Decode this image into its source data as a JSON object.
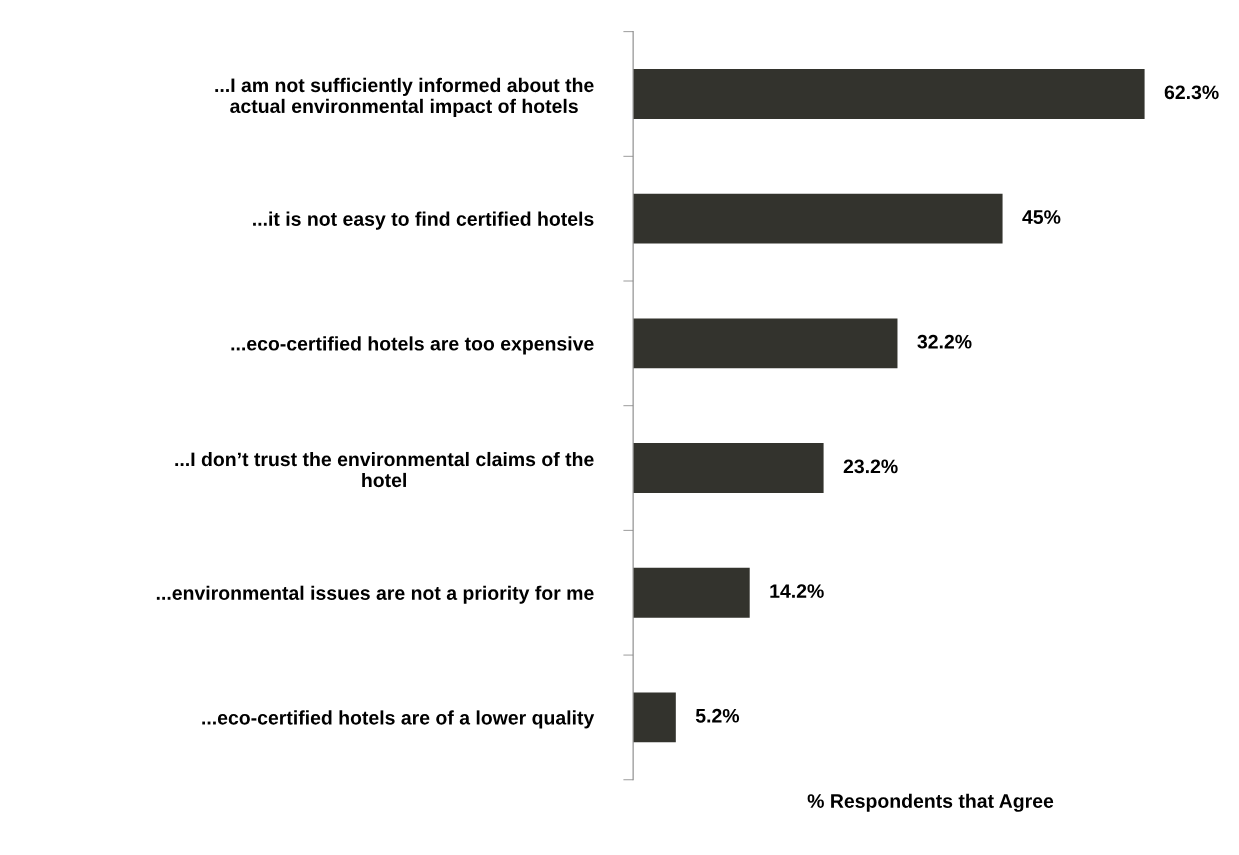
{
  "chart_data": {
    "type": "bar",
    "orientation": "horizontal",
    "categories": [
      "...I am not sufficiently informed about the\nactual environmental impact of hotels",
      "...it is not easy to find certified hotels",
      "...eco-certified hotels are too expensive",
      "...I don’t trust the environmental claims of the\nhotel",
      "...environmental issues are not a priority for me",
      "...eco-certified hotels are of a lower quality"
    ],
    "values": [
      62.3,
      45,
      32.2,
      23.2,
      14.2,
      5.2
    ],
    "value_labels": [
      "62.3%",
      "45%",
      "32.2%",
      "23.2%",
      "14.2%",
      "5.2%"
    ],
    "color": "#33332d",
    "xlabel": "% Respondents that Agree",
    "grid": false,
    "legend": false
  }
}
